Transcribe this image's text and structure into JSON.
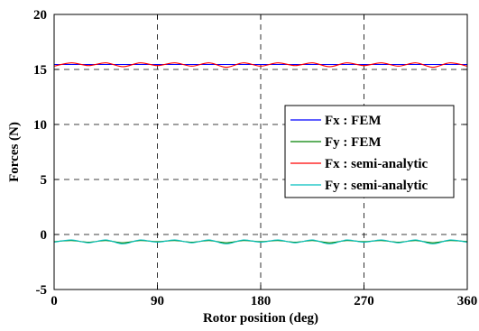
{
  "chart_data": {
    "type": "line",
    "title": "",
    "xlabel": "Rotor position (deg)",
    "ylabel": "Forces (N)",
    "xlim": [
      0,
      360
    ],
    "ylim": [
      -5,
      20
    ],
    "xticks": [
      0,
      90,
      180,
      270,
      360
    ],
    "yticks": [
      -5,
      0,
      5,
      10,
      15,
      20
    ],
    "grid": true,
    "grid_style": "dashed",
    "legend_position": "right",
    "legend": [
      "Fx : FEM",
      "Fy : FEM",
      "Fx : semi-analytic",
      "Fy : semi-analytic"
    ],
    "series": [
      {
        "name": "Fx : FEM",
        "color": "#0000ff",
        "x": [
          0,
          360
        ],
        "y": [
          15.45,
          15.45
        ]
      },
      {
        "name": "Fy : FEM",
        "color": "#008000",
        "x": [
          0,
          15,
          30,
          45,
          60,
          75,
          90,
          105,
          120,
          135,
          150,
          165,
          180,
          195,
          210,
          225,
          240,
          255,
          270,
          285,
          300,
          315,
          330,
          345,
          360
        ],
        "y": [
          -0.65,
          -0.55,
          -0.7,
          -0.55,
          -0.75,
          -0.55,
          -0.65,
          -0.55,
          -0.7,
          -0.55,
          -0.75,
          -0.55,
          -0.65,
          -0.55,
          -0.7,
          -0.55,
          -0.75,
          -0.55,
          -0.65,
          -0.55,
          -0.7,
          -0.55,
          -0.75,
          -0.55,
          -0.65
        ]
      },
      {
        "name": "Fx : semi-analytic",
        "color": "#ff0000",
        "x": [
          0,
          15,
          30,
          45,
          60,
          75,
          90,
          105,
          120,
          135,
          150,
          165,
          180,
          195,
          210,
          225,
          240,
          255,
          270,
          285,
          300,
          315,
          330,
          345,
          360
        ],
        "y": [
          15.3,
          15.6,
          15.35,
          15.6,
          15.25,
          15.6,
          15.35,
          15.6,
          15.3,
          15.6,
          15.2,
          15.6,
          15.3,
          15.6,
          15.35,
          15.6,
          15.25,
          15.6,
          15.35,
          15.6,
          15.3,
          15.6,
          15.2,
          15.6,
          15.3
        ]
      },
      {
        "name": "Fy : semi-analytic",
        "color": "#00bfbf",
        "x": [
          0,
          15,
          30,
          45,
          60,
          75,
          90,
          105,
          120,
          135,
          150,
          165,
          180,
          195,
          210,
          225,
          240,
          255,
          270,
          285,
          300,
          315,
          330,
          345,
          360
        ],
        "y": [
          -0.7,
          -0.5,
          -0.75,
          -0.5,
          -0.85,
          -0.5,
          -0.7,
          -0.5,
          -0.75,
          -0.5,
          -0.85,
          -0.5,
          -0.7,
          -0.5,
          -0.75,
          -0.5,
          -0.85,
          -0.5,
          -0.7,
          -0.5,
          -0.75,
          -0.5,
          -0.85,
          -0.5,
          -0.7
        ]
      }
    ]
  }
}
